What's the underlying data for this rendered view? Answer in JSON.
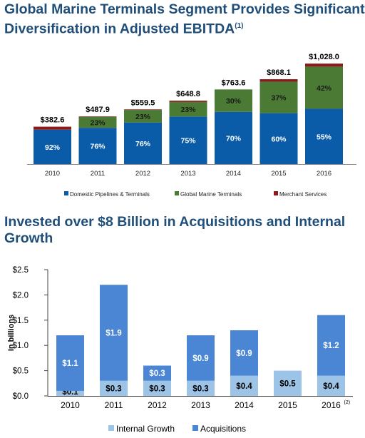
{
  "chart_data": [
    {
      "type": "bar",
      "stacked": true,
      "title": "Global Marine Terminals Segment Provides Significant Diversification in Adjusted EBITDA",
      "title_footnote": "(1)",
      "categories": [
        "2010",
        "2011",
        "2012",
        "2013",
        "2014",
        "2015",
        "2016"
      ],
      "totals": [
        382.6,
        487.9,
        559.5,
        648.8,
        763.6,
        868.1,
        1028.0
      ],
      "total_labels": [
        "$382.6",
        "$487.9",
        "$559.5",
        "$648.8",
        "$763.6",
        "$868.1",
        "$1,028.0"
      ],
      "series": [
        {
          "name": "Domestic Pipelines & Terminals",
          "color": "#0a5ca8",
          "percents": [
            92,
            76,
            76,
            75,
            70,
            60,
            55
          ],
          "labels": [
            "92%",
            "76%",
            "76%",
            "75%",
            "70%",
            "60%",
            "55%"
          ]
        },
        {
          "name": "Global Marine Terminals",
          "color": "#4a7a34",
          "percents": [
            0,
            23,
            23,
            23,
            30,
            37,
            42
          ],
          "labels": [
            "",
            "23%",
            "23%",
            "23%",
            "30%",
            "37%",
            "42%"
          ]
        },
        {
          "name": "Merchant Services",
          "color": "#8b1a1a",
          "percents": [
            8,
            1,
            1,
            2,
            0,
            3,
            3
          ],
          "labels": [
            "",
            "",
            "",
            "",
            "",
            "",
            ""
          ]
        }
      ],
      "legend_position": "bottom",
      "grid": false
    },
    {
      "type": "bar",
      "stacked": true,
      "title": "Invested over $8 Billion in Acquisitions and Internal Growth",
      "categories": [
        "2010",
        "2011",
        "2012",
        "2013",
        "2014",
        "2015",
        "2016"
      ],
      "last_category_footnote": "(2)",
      "ylabel": "In billions",
      "ylim": [
        0,
        2.5
      ],
      "yticks": [
        0,
        0.5,
        1.0,
        1.5,
        2.0,
        2.5
      ],
      "ytick_labels": [
        "$0.0",
        "$0.5",
        "$1.0",
        "$1.5",
        "$2.0",
        "$2.5"
      ],
      "series": [
        {
          "name": "Internal Growth",
          "color": "#9dc3e6",
          "values": [
            0.1,
            0.3,
            0.3,
            0.3,
            0.4,
            0.5,
            0.4
          ],
          "labels": [
            "$0.1",
            "$0.3",
            "$0.3",
            "$0.3",
            "$0.4",
            "$0.5",
            "$0.4"
          ]
        },
        {
          "name": "Acquisitions",
          "color": "#4a86d4",
          "values": [
            1.1,
            1.9,
            0.3,
            0.9,
            0.9,
            0,
            1.2
          ],
          "labels": [
            "$1.1",
            "$1.9",
            "$0.3",
            "$0.9",
            "$0.9",
            "",
            "$1.2"
          ]
        }
      ],
      "legend_position": "bottom",
      "grid": false
    }
  ]
}
